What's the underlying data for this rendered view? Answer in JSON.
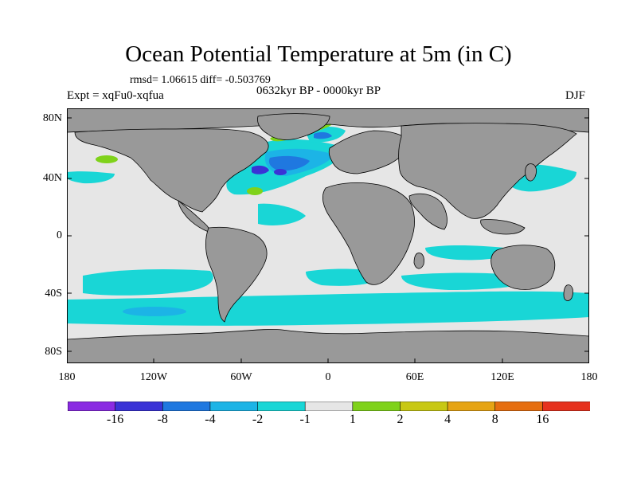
{
  "title": "Ocean Potential Temperature at 5m (in C)",
  "stats": "rmsd= 1.06615 diff= -0.503769",
  "expt": "Expt = xqFu0-xqfua",
  "period": "0632kyr BP - 0000kyr BP",
  "season": "DJF",
  "axes": {
    "y_labels": [
      "80N",
      "40N",
      "0",
      "40S",
      "80S"
    ],
    "x_labels": [
      "180",
      "120W",
      "60W",
      "0",
      "60E",
      "120E",
      "180"
    ]
  },
  "colorbar": {
    "labels": [
      "-16",
      "-8",
      "-4",
      "-2",
      "-1",
      "1",
      "2",
      "4",
      "8",
      "16"
    ],
    "colors": [
      "#8a2be2",
      "#3a33d6",
      "#1f78e0",
      "#1cb4e6",
      "#19d6d6",
      "#e6e6e6",
      "#7fd21a",
      "#c8c814",
      "#e6a414",
      "#e66e10",
      "#e6321e"
    ]
  },
  "colors": {
    "land": "#999999",
    "ocean_neutral": "#e6e6e6"
  }
}
